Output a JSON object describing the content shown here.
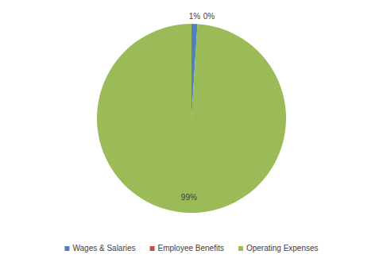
{
  "chart_data": {
    "type": "pie",
    "categories": [
      "Wages & Salaries",
      "Employee Benefits",
      "Operating Expenses"
    ],
    "values": [
      1,
      0,
      99
    ],
    "value_labels": [
      "1%",
      "0%",
      "99%"
    ],
    "colors": [
      "#4f81bd",
      "#c0504d",
      "#9bbb59"
    ],
    "data_labels": true,
    "legend": "bottom"
  }
}
